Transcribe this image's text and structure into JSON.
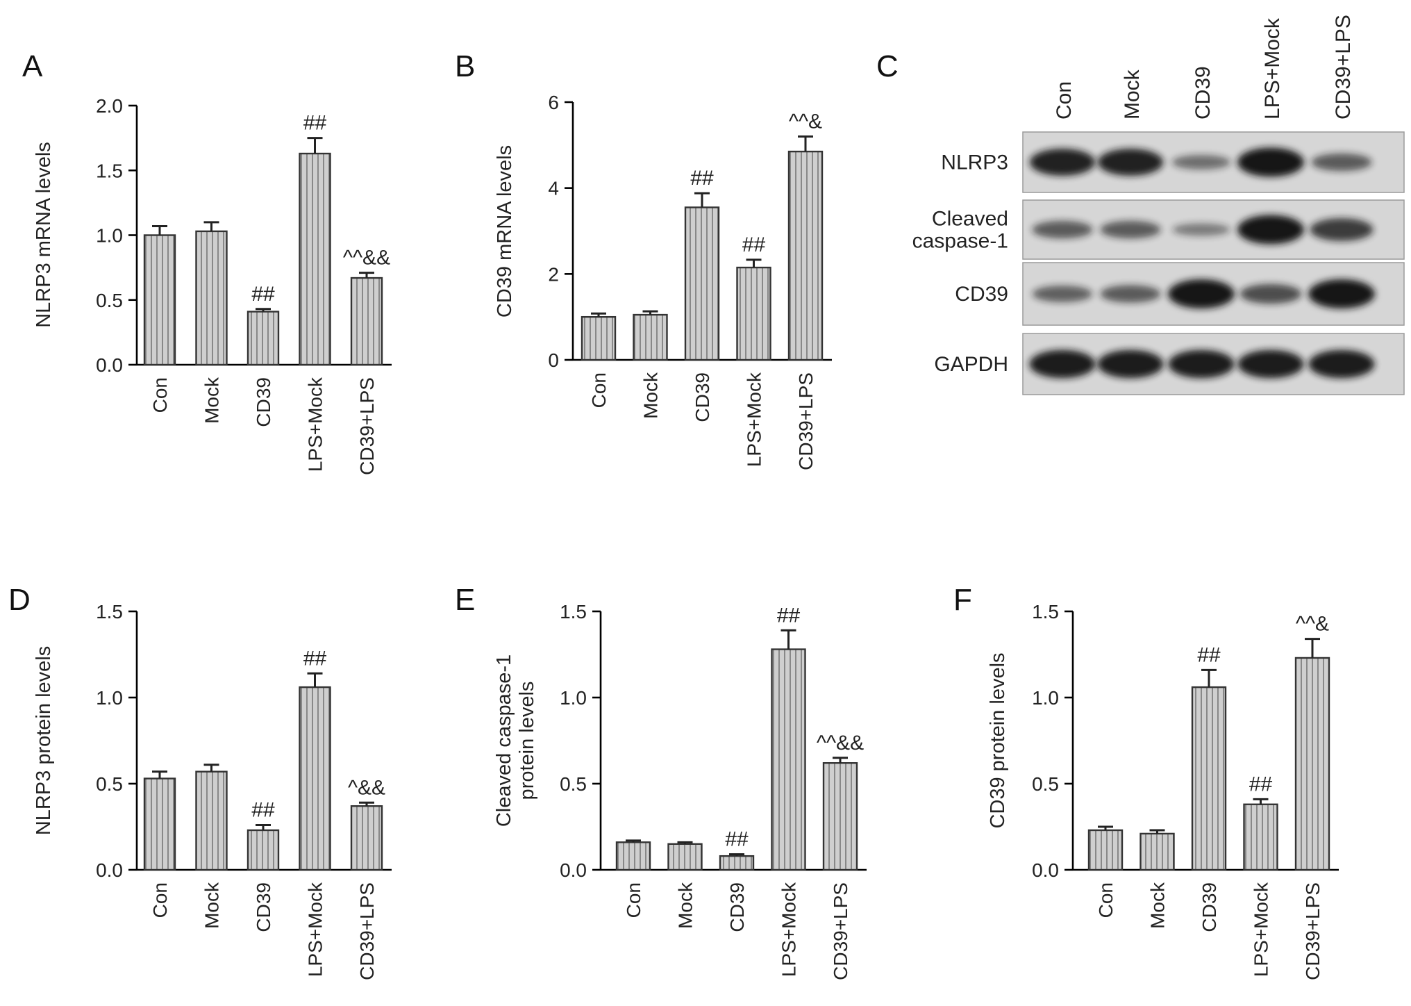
{
  "chart_data": [
    {
      "panel": "A",
      "type": "bar",
      "categories": [
        "Con",
        "Mock",
        "CD39",
        "LPS+Mock",
        "CD39+LPS"
      ],
      "values": [
        1.0,
        1.03,
        0.41,
        1.63,
        0.67
      ],
      "errors": [
        0.07,
        0.07,
        0.02,
        0.12,
        0.04
      ],
      "annotations": [
        "",
        "",
        "##",
        "##",
        "^^&&"
      ],
      "ylabel": "NLRP3 mRNA levels",
      "ylim": [
        0,
        2.0
      ],
      "yticks": [
        "0.0",
        "0.5",
        "1.0",
        "1.5",
        "2.0"
      ]
    },
    {
      "panel": "B",
      "type": "bar",
      "categories": [
        "Con",
        "Mock",
        "CD39",
        "LPS+Mock",
        "CD39+LPS"
      ],
      "values": [
        1.0,
        1.05,
        3.55,
        2.15,
        4.85
      ],
      "errors": [
        0.08,
        0.08,
        0.33,
        0.18,
        0.35
      ],
      "annotations": [
        "",
        "",
        "##",
        "##",
        "^^&"
      ],
      "ylabel": "CD39 mRNA levels",
      "ylim": [
        0,
        6
      ],
      "yticks": [
        "0",
        "2",
        "4",
        "6"
      ]
    },
    {
      "panel": "D",
      "type": "bar",
      "categories": [
        "Con",
        "Mock",
        "CD39",
        "LPS+Mock",
        "CD39+LPS"
      ],
      "values": [
        0.53,
        0.57,
        0.23,
        1.06,
        0.37
      ],
      "errors": [
        0.04,
        0.04,
        0.03,
        0.08,
        0.02
      ],
      "annotations": [
        "",
        "",
        "##",
        "##",
        "^&&"
      ],
      "ylabel": "NLRP3 protein levels",
      "ylim": [
        0,
        1.5
      ],
      "yticks": [
        "0.0",
        "0.5",
        "1.0",
        "1.5"
      ]
    },
    {
      "panel": "E",
      "type": "bar",
      "categories": [
        "Con",
        "Mock",
        "CD39",
        "LPS+Mock",
        "CD39+LPS"
      ],
      "values": [
        0.16,
        0.15,
        0.08,
        1.28,
        0.62
      ],
      "errors": [
        0.01,
        0.01,
        0.01,
        0.11,
        0.03
      ],
      "annotations": [
        "",
        "",
        "##",
        "##",
        "^^&&"
      ],
      "ylabel_lines": [
        "Cleaved caspase-1",
        "protein levels"
      ],
      "ylim": [
        0,
        1.5
      ],
      "yticks": [
        "0.0",
        "0.5",
        "1.0",
        "1.5"
      ]
    },
    {
      "panel": "F",
      "type": "bar",
      "categories": [
        "Con",
        "Mock",
        "CD39",
        "LPS+Mock",
        "CD39+LPS"
      ],
      "values": [
        0.23,
        0.21,
        1.06,
        0.38,
        1.23
      ],
      "errors": [
        0.02,
        0.02,
        0.1,
        0.03,
        0.11
      ],
      "annotations": [
        "",
        "",
        "##",
        "##",
        "^^&"
      ],
      "ylabel": "CD39 protein levels",
      "ylim": [
        0,
        1.5
      ],
      "yticks": [
        "0.0",
        "0.5",
        "1.0",
        "1.5"
      ]
    }
  ],
  "blot": {
    "panel": "C",
    "lanes": [
      "Con",
      "Mock",
      "CD39",
      "LPS+Mock",
      "CD39+LPS"
    ],
    "rows": [
      {
        "label_lines": [
          "NLRP3"
        ],
        "intensity": [
          0.9,
          0.9,
          0.3,
          1.0,
          0.45
        ]
      },
      {
        "label_lines": [
          "Cleaved",
          "caspase-1"
        ],
        "intensity": [
          0.45,
          0.45,
          0.2,
          1.0,
          0.7
        ]
      },
      {
        "label_lines": [
          "CD39"
        ],
        "intensity": [
          0.4,
          0.45,
          1.0,
          0.55,
          1.0
        ]
      },
      {
        "label_lines": [
          "GAPDH"
        ],
        "intensity": [
          0.95,
          0.95,
          0.95,
          0.95,
          0.95
        ]
      }
    ]
  },
  "colors": {
    "bar_fill": "#cfcfcf",
    "bar_stripe": "#808080",
    "blot_bg": "#d6d6d6",
    "band": "#151515"
  }
}
